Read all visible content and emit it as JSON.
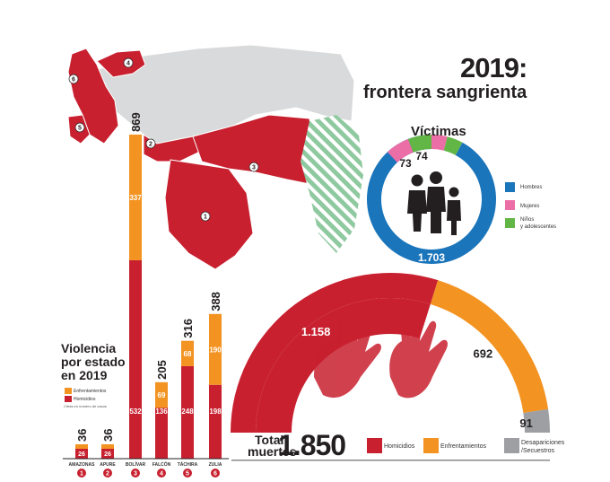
{
  "title": "2019:",
  "subtitle": "frontera sangrienta",
  "colors": {
    "homicidios": "#c8202f",
    "enfrentamientos": "#f39321",
    "desapariciones": "#9d9fa2",
    "hombres": "#1b75bb",
    "mujeres": "#ec6ea7",
    "ninos": "#62b646",
    "map_gray": "#d9dadb",
    "map_striped": "#8fc9a0"
  },
  "chart_data": [
    {
      "type": "bar",
      "title": "Violencia por estado en 2019",
      "categories": [
        "AMAZONAS",
        "APURE",
        "BOLÍVAR",
        "FALCÓN",
        "TÁCHIRA",
        "ZULIA"
      ],
      "markers": [
        "1",
        "2",
        "3",
        "4",
        "5",
        "6"
      ],
      "totals": [
        36,
        36,
        869,
        205,
        316,
        388
      ],
      "totals_labels": [
        "36",
        "36",
        "869",
        "205",
        "316",
        "388"
      ],
      "series": [
        {
          "name": "Homicidios",
          "values": [
            26,
            26,
            532,
            136,
            248,
            198
          ],
          "labels": [
            "26",
            "26",
            "532",
            "136",
            "248",
            "198"
          ]
        },
        {
          "name": "Enfrentamientos",
          "values": [
            10,
            10,
            337,
            69,
            68,
            190
          ],
          "labels": [
            "10",
            "10",
            "337",
            "69",
            "68",
            "190"
          ]
        }
      ],
      "legend": [
        "Enfrentamientos",
        "Homicidios"
      ],
      "note": "Cifras en número de casos"
    },
    {
      "type": "pie",
      "variant": "half-donut",
      "title": "Total muertes",
      "total_label": "1.850",
      "categories": [
        "Homicidios",
        "Enfrentamientos",
        "Desapariciones /Secuestros"
      ],
      "values": [
        1158,
        692,
        91
      ],
      "value_labels": [
        "1.158",
        "692",
        "91"
      ]
    },
    {
      "type": "pie",
      "variant": "donut",
      "title": "Víctimas",
      "categories": [
        "Hombres",
        "Mujeres",
        "Niños y adolescentes"
      ],
      "values": [
        1703,
        73,
        74
      ],
      "value_labels": [
        "1.703",
        "73",
        "74"
      ]
    }
  ],
  "map": {
    "markers": [
      "1",
      "2",
      "3",
      "4",
      "5",
      "6"
    ]
  },
  "labels": {
    "vic_legend": [
      "Hombres",
      "Mujeres",
      "Niños",
      "y adolescentes"
    ],
    "total_words": [
      "Total",
      "muertes"
    ],
    "cat_legend": [
      "Homicidios",
      "Enfrentamientos",
      "Desapariciones",
      "/Secuestros"
    ],
    "bar_legend": [
      "Enfrentamientos",
      "Homicidios"
    ]
  }
}
